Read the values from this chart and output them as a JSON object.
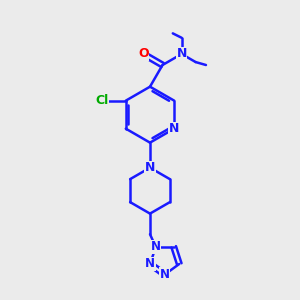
{
  "bg_color": "#ebebeb",
  "bond_color": "#1a1aff",
  "bond_width": 1.8,
  "atom_colors": {
    "N": "#1a1aff",
    "O": "#ff0000",
    "Cl": "#00aa00",
    "C": "#1a1aff"
  },
  "font_size": 9,
  "fig_size": [
    3.0,
    3.0
  ],
  "dpi": 100
}
